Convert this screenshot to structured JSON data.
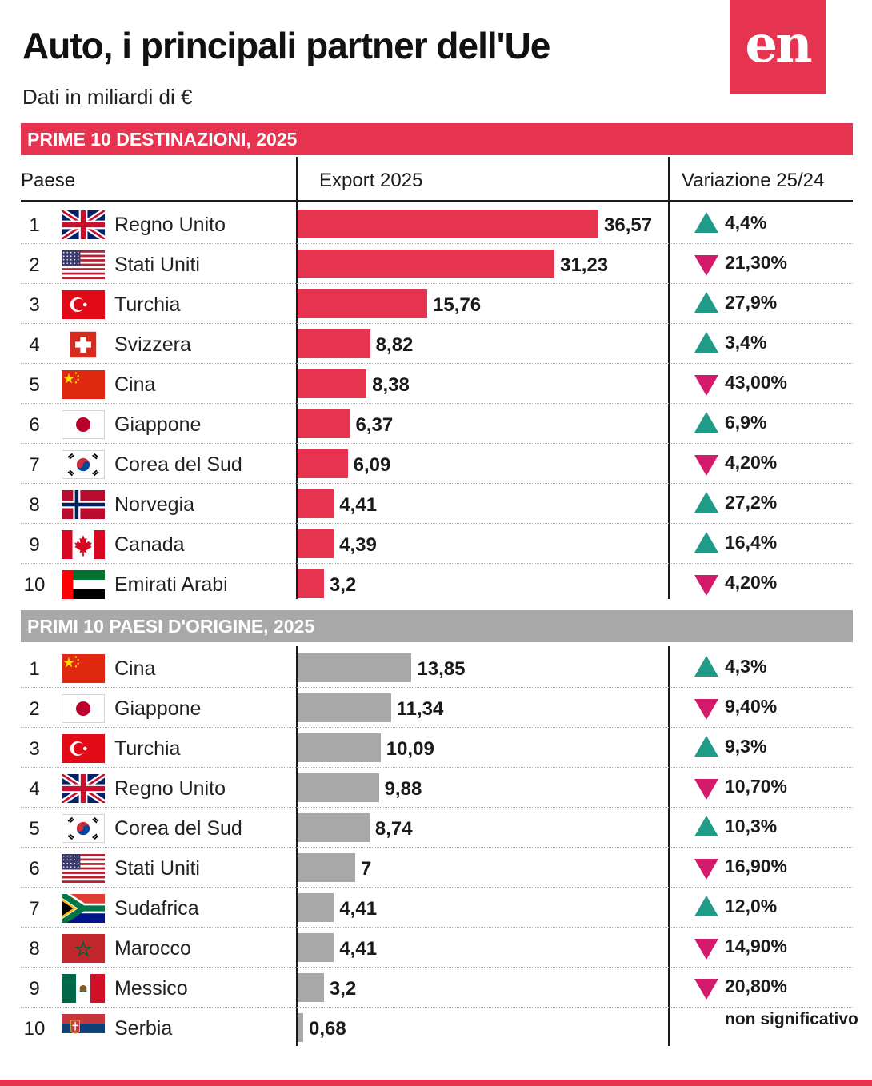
{
  "header": {
    "title": "Auto, i principali partner dell'Ue",
    "subtitle": "Dati in miliardi di €",
    "logo": "en"
  },
  "colors": {
    "accent": "#e63350",
    "grey": "#a8a8a8",
    "up": "#1f9b87",
    "down": "#d41a6a"
  },
  "columns": {
    "country": "Paese",
    "value": "Export 2025",
    "change": "Variazione 25/24"
  },
  "chart_data": [
    {
      "type": "bar",
      "title": "PRIME 10 DESTINAZIONI, 2025",
      "value_label": "Export 2025",
      "unit": "miliardi di €",
      "xlim": [
        0,
        36.57
      ],
      "rows": [
        {
          "rank": "1",
          "country": "Regno Unito",
          "flag": "uk-flag-icon",
          "value": 36.57,
          "value_label": "36,57",
          "change_dir": "up",
          "change": "4,4%"
        },
        {
          "rank": "2",
          "country": "Stati Uniti",
          "flag": "us-flag-icon",
          "value": 31.23,
          "value_label": "31,23",
          "change_dir": "down",
          "change": "21,30%"
        },
        {
          "rank": "3",
          "country": "Turchia",
          "flag": "turkey-flag-icon",
          "value": 15.76,
          "value_label": "15,76",
          "change_dir": "up",
          "change": "27,9%"
        },
        {
          "rank": "4",
          "country": "Svizzera",
          "flag": "switzerland-flag-icon",
          "value": 8.82,
          "value_label": "8,82",
          "change_dir": "up",
          "change": "3,4%"
        },
        {
          "rank": "5",
          "country": "Cina",
          "flag": "china-flag-icon",
          "value": 8.38,
          "value_label": "8,38",
          "change_dir": "down",
          "change": "43,00%"
        },
        {
          "rank": "6",
          "country": "Giappone",
          "flag": "japan-flag-icon",
          "value": 6.37,
          "value_label": "6,37",
          "change_dir": "up",
          "change": "6,9%"
        },
        {
          "rank": "7",
          "country": "Corea del Sud",
          "flag": "south-korea-flag-icon",
          "value": 6.09,
          "value_label": "6,09",
          "change_dir": "down",
          "change": "4,20%"
        },
        {
          "rank": "8",
          "country": "Norvegia",
          "flag": "norway-flag-icon",
          "value": 4.41,
          "value_label": "4,41",
          "change_dir": "up",
          "change": "27,2%"
        },
        {
          "rank": "9",
          "country": "Canada",
          "flag": "canada-flag-icon",
          "value": 4.39,
          "value_label": "4,39",
          "change_dir": "up",
          "change": "16,4%"
        },
        {
          "rank": "10",
          "country": "Emirati Arabi",
          "flag": "uae-flag-icon",
          "value": 3.2,
          "value_label": "3,2",
          "change_dir": "down",
          "change": "4,20%"
        }
      ]
    },
    {
      "type": "bar",
      "title": "PRIMI 10 PAESI D'ORIGINE, 2025",
      "unit": "miliardi di €",
      "xlim": [
        0,
        36.57
      ],
      "rows": [
        {
          "rank": "1",
          "country": "Cina",
          "flag": "china-flag-icon",
          "value": 13.85,
          "value_label": "13,85",
          "change_dir": "up",
          "change": "4,3%"
        },
        {
          "rank": "2",
          "country": "Giappone",
          "flag": "japan-flag-icon",
          "value": 11.34,
          "value_label": "11,34",
          "change_dir": "down",
          "change": "9,40%"
        },
        {
          "rank": "3",
          "country": "Turchia",
          "flag": "turkey-flag-icon",
          "value": 10.09,
          "value_label": "10,09",
          "change_dir": "up",
          "change": "9,3%"
        },
        {
          "rank": "4",
          "country": "Regno Unito",
          "flag": "uk-flag-icon",
          "value": 9.88,
          "value_label": "9,88",
          "change_dir": "down",
          "change": "10,70%"
        },
        {
          "rank": "5",
          "country": "Corea del Sud",
          "flag": "south-korea-flag-icon",
          "value": 8.74,
          "value_label": "8,74",
          "change_dir": "up",
          "change": "10,3%"
        },
        {
          "rank": "6",
          "country": "Stati Uniti",
          "flag": "us-flag-icon",
          "value": 7,
          "value_label": "7",
          "change_dir": "down",
          "change": "16,90%"
        },
        {
          "rank": "7",
          "country": "Sudafrica",
          "flag": "south-africa-flag-icon",
          "value": 4.41,
          "value_label": "4,41",
          "change_dir": "up",
          "change": "12,0%"
        },
        {
          "rank": "8",
          "country": "Marocco",
          "flag": "morocco-flag-icon",
          "value": 4.41,
          "value_label": "4,41",
          "change_dir": "down",
          "change": "14,90%"
        },
        {
          "rank": "9",
          "country": "Messico",
          "flag": "mexico-flag-icon",
          "value": 3.2,
          "value_label": "3,2",
          "change_dir": "down",
          "change": "20,80%"
        },
        {
          "rank": "10",
          "country": "Serbia",
          "flag": "serbia-flag-icon",
          "value": 0.68,
          "value_label": "0,68",
          "change_dir": "none",
          "change": "non significativo"
        }
      ]
    }
  ]
}
